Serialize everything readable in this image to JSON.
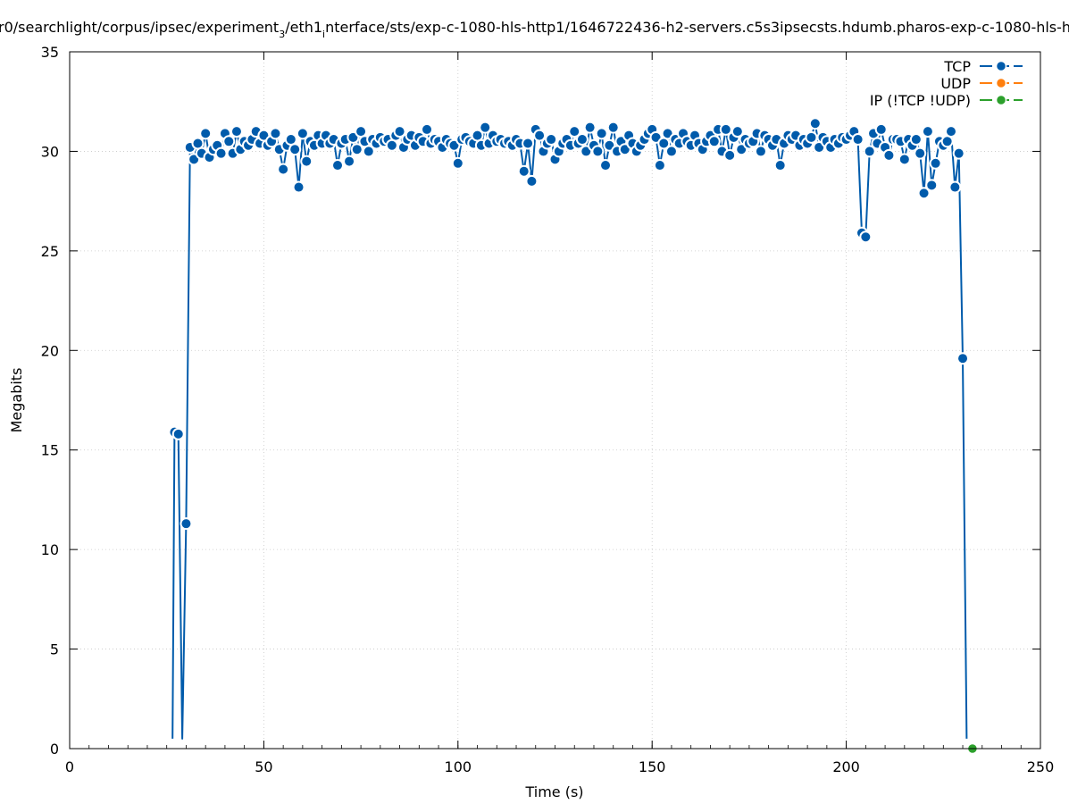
{
  "chart_data": {
    "type": "line",
    "title_before": "r0/searchlight/corpus/ipsec/experiment",
    "title_sub": "3",
    "title_mid": "/eth1",
    "title_sub2": "i",
    "title_after": "nterface/sts/exp-c-1080-hls-http1/1646722436-h2-servers.c5s3ipsecsts.hdumb.pharos-exp-c-1080-hls-h",
    "xlabel": "Time (s)",
    "ylabel": "Megabits",
    "xlim": [
      0,
      250
    ],
    "ylim": [
      0,
      35
    ],
    "xticks": [
      0,
      50,
      100,
      150,
      200,
      250
    ],
    "yticks": [
      0,
      5,
      10,
      15,
      20,
      25,
      30,
      35
    ],
    "grid": true,
    "legend_position": "top-right",
    "series": [
      {
        "name": "TCP",
        "color": "#005bab",
        "x": [
          26.5,
          27,
          28,
          29,
          30,
          31,
          32,
          33,
          34,
          35,
          36,
          37,
          38,
          39,
          40,
          41,
          42,
          43,
          44,
          45,
          46,
          47,
          48,
          49,
          50,
          51,
          52,
          53,
          54,
          55,
          56,
          57,
          58,
          59,
          60,
          61,
          62,
          63,
          64,
          65,
          66,
          67,
          68,
          69,
          70,
          71,
          72,
          73,
          74,
          75,
          76,
          77,
          78,
          79,
          80,
          81,
          82,
          83,
          84,
          85,
          86,
          87,
          88,
          89,
          90,
          91,
          92,
          93,
          94,
          95,
          96,
          97,
          98,
          99,
          100,
          101,
          102,
          103,
          104,
          105,
          106,
          107,
          108,
          109,
          110,
          111,
          112,
          113,
          114,
          115,
          116,
          117,
          118,
          119,
          120,
          121,
          122,
          123,
          124,
          125,
          126,
          127,
          128,
          129,
          130,
          131,
          132,
          133,
          134,
          135,
          136,
          137,
          138,
          139,
          140,
          141,
          142,
          143,
          144,
          145,
          146,
          147,
          148,
          149,
          150,
          151,
          152,
          153,
          154,
          155,
          156,
          157,
          158,
          159,
          160,
          161,
          162,
          163,
          164,
          165,
          166,
          167,
          168,
          169,
          170,
          171,
          172,
          173,
          174,
          175,
          176,
          177,
          178,
          179,
          180,
          181,
          182,
          183,
          184,
          185,
          186,
          187,
          188,
          189,
          190,
          191,
          192,
          193,
          194,
          195,
          196,
          197,
          198,
          199,
          200,
          201,
          202,
          203,
          204,
          205,
          206,
          207,
          208,
          209,
          210,
          211,
          212,
          213,
          214,
          215,
          216,
          217,
          218,
          219,
          220,
          221,
          222,
          223,
          224,
          225,
          226,
          227,
          228,
          229,
          230,
          231
        ],
        "values": [
          0.5,
          15.9,
          15.8,
          0.5,
          11.3,
          30.2,
          29.6,
          30.4,
          29.9,
          30.9,
          29.7,
          30.1,
          30.3,
          29.9,
          30.9,
          30.5,
          29.9,
          31.0,
          30.1,
          30.5,
          30.3,
          30.6,
          31.0,
          30.4,
          30.8,
          30.3,
          30.5,
          30.9,
          30.1,
          29.1,
          30.3,
          30.6,
          30.1,
          28.2,
          30.9,
          29.5,
          30.5,
          30.3,
          30.8,
          30.4,
          30.8,
          30.4,
          30.6,
          29.3,
          30.4,
          30.6,
          29.5,
          30.7,
          30.1,
          31.0,
          30.5,
          30.0,
          30.6,
          30.4,
          30.7,
          30.5,
          30.6,
          30.3,
          30.8,
          31.0,
          30.2,
          30.6,
          30.8,
          30.3,
          30.7,
          30.5,
          31.1,
          30.4,
          30.6,
          30.5,
          30.2,
          30.6,
          30.4,
          30.3,
          29.4,
          30.6,
          30.7,
          30.5,
          30.4,
          30.8,
          30.3,
          31.2,
          30.4,
          30.8,
          30.5,
          30.6,
          30.4,
          30.5,
          30.3,
          30.6,
          30.4,
          29.0,
          30.4,
          28.5,
          31.1,
          30.8,
          30.0,
          30.4,
          30.6,
          29.6,
          30.0,
          30.4,
          30.6,
          30.3,
          31.0,
          30.4,
          30.6,
          30.0,
          31.2,
          30.3,
          30.0,
          30.9,
          29.3,
          30.3,
          31.2,
          30.0,
          30.5,
          30.1,
          30.8,
          30.4,
          30.0,
          30.3,
          30.6,
          30.9,
          31.1,
          30.7,
          29.3,
          30.4,
          30.9,
          30.0,
          30.6,
          30.4,
          30.9,
          30.5,
          30.3,
          30.8,
          30.4,
          30.1,
          30.5,
          30.8,
          30.5,
          31.1,
          30.0,
          31.1,
          29.8,
          30.7,
          31.0,
          30.1,
          30.6,
          30.4,
          30.5,
          30.9,
          30.0,
          30.8,
          30.6,
          30.3,
          30.6,
          29.3,
          30.4,
          30.8,
          30.6,
          30.8,
          30.3,
          30.6,
          30.4,
          30.7,
          31.4,
          30.2,
          30.7,
          30.5,
          30.2,
          30.6,
          30.4,
          30.7,
          30.6,
          30.8,
          31.0,
          30.6,
          25.9,
          25.7,
          30.0,
          30.9,
          30.4,
          31.1,
          30.2,
          29.8,
          30.6,
          30.6,
          30.5,
          29.6,
          30.6,
          30.3,
          30.6,
          29.9,
          27.9,
          31.0,
          28.3,
          29.4,
          30.5,
          30.3,
          30.5,
          31.0,
          28.2,
          29.9,
          19.6,
          0.5
        ]
      },
      {
        "name": "UDP",
        "color": "#ff7f0e",
        "x": [],
        "values": []
      },
      {
        "name": "IP (!TCP  !UDP)",
        "color": "#2ca02c",
        "x": [
          232.5
        ],
        "values": [
          0
        ]
      }
    ]
  }
}
